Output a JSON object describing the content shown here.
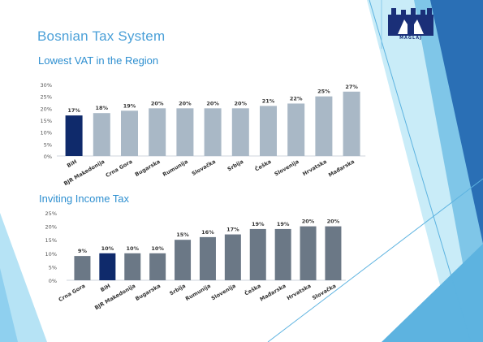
{
  "slide": {
    "title": "Bosnian Tax System",
    "logo_text": "MAGLAJ"
  },
  "colors": {
    "title": "#4ba0d8",
    "highlight_bar": "#0f2a6b",
    "vat_bar": "#a9b8c6",
    "income_bar": "#6b7886",
    "accent_blue": "#2a6fb5",
    "accent_light": "#8fd0ef"
  },
  "chart_data": [
    {
      "type": "bar",
      "title": "Lowest VAT in the Region",
      "categories": [
        "BiH",
        "BJR Makedonija",
        "Crna Gora",
        "Bugarska",
        "Rumunija",
        "Slovačka",
        "Srbija",
        "Češka",
        "Slovenija",
        "Hrvatska",
        "Mađarska"
      ],
      "values": [
        17,
        18,
        19,
        20,
        20,
        20,
        20,
        21,
        22,
        25,
        27
      ],
      "data_labels": [
        "17%",
        "18%",
        "19%",
        "20%",
        "20%",
        "20%",
        "20%",
        "21%",
        "22%",
        "25%",
        "27%"
      ],
      "y_ticks": [
        "0%",
        "5%",
        "10%",
        "15%",
        "20%",
        "25%",
        "30%"
      ],
      "ylim": [
        0,
        30
      ],
      "highlight": "BiH",
      "grid": false
    },
    {
      "type": "bar",
      "title": "Inviting Income Tax",
      "categories": [
        "Crna Gora",
        "BiH",
        "BJR Makedonija",
        "Bugarska",
        "Srbija",
        "Rumunija",
        "Slovenija",
        "Češka",
        "Mađarska",
        "Hrvatska",
        "Slovačka"
      ],
      "values": [
        9,
        10,
        10,
        10,
        15,
        16,
        17,
        19,
        19,
        20,
        20
      ],
      "data_labels": [
        "9%",
        "10%",
        "10%",
        "10%",
        "15%",
        "16%",
        "17%",
        "19%",
        "19%",
        "20%",
        "20%"
      ],
      "y_ticks": [
        "0%",
        "5%",
        "10%",
        "15%",
        "20%",
        "25%"
      ],
      "ylim": [
        0,
        25
      ],
      "highlight": "BiH",
      "grid": false
    }
  ]
}
